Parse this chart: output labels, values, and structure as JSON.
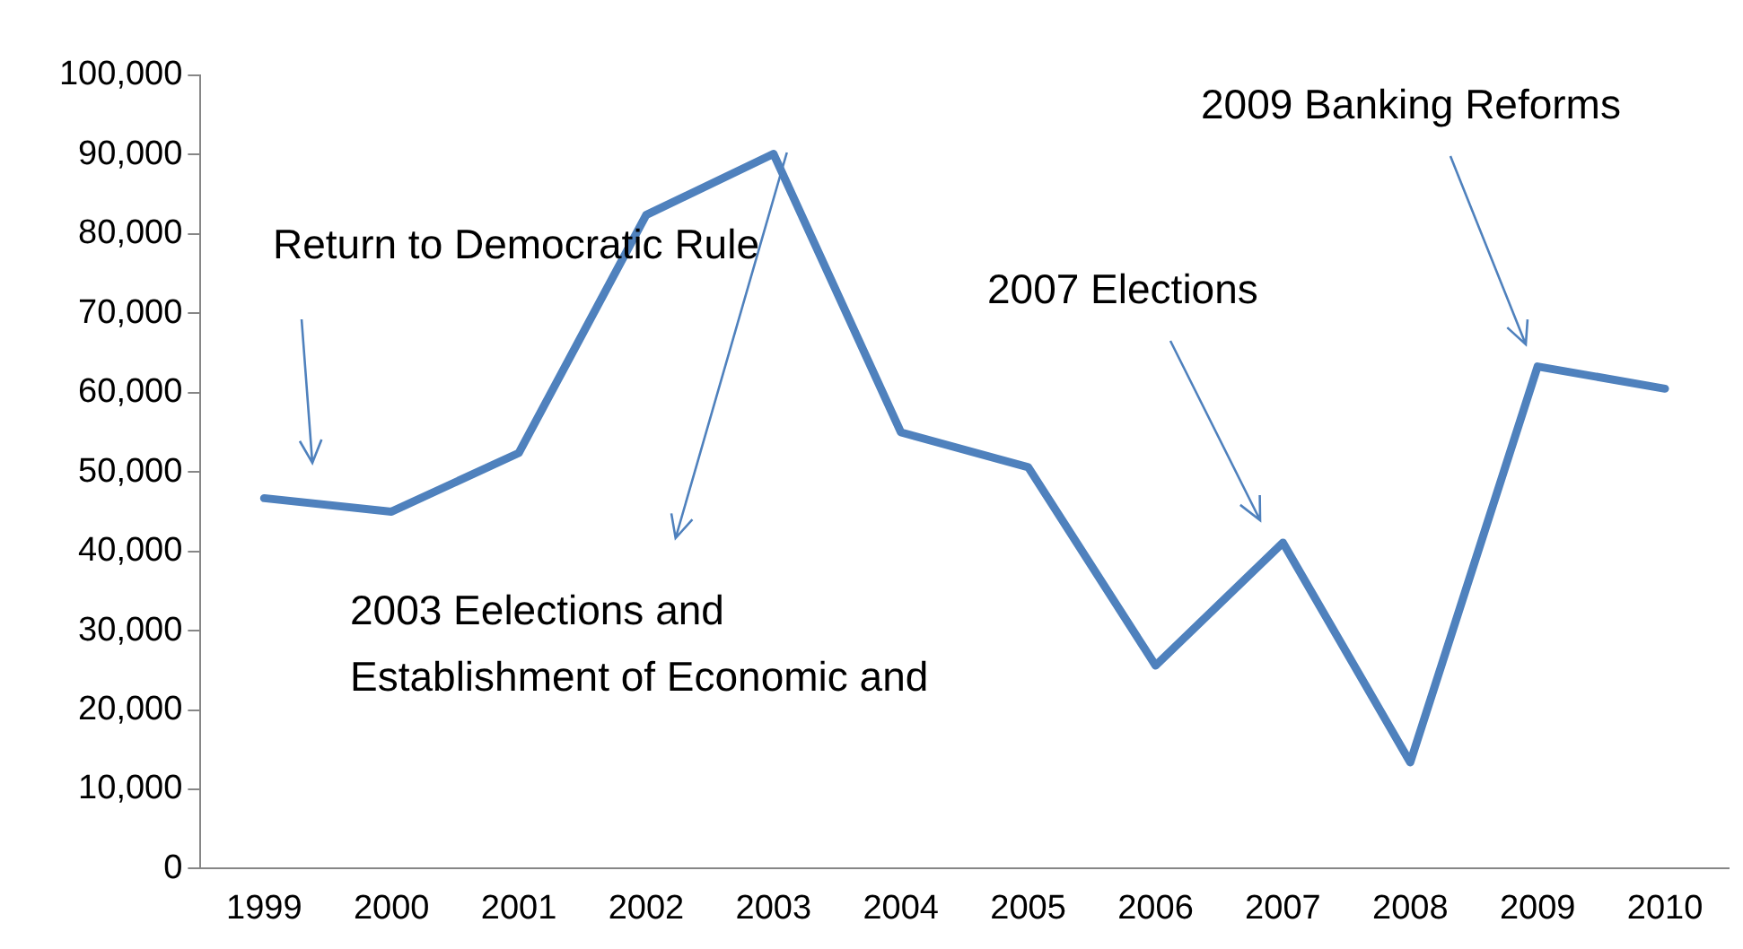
{
  "chart_data": {
    "type": "line",
    "categories": [
      "1999",
      "2000",
      "2001",
      "2002",
      "2003",
      "2004",
      "2005",
      "2006",
      "2007",
      "2008",
      "2009",
      "2010"
    ],
    "series": [
      {
        "color": "#4f81bd",
        "values": [
          46700,
          45000,
          52400,
          82400,
          90100,
          55000,
          50600,
          25600,
          41100,
          13400,
          63300,
          60500
        ]
      }
    ],
    "ylim": [
      0,
      100000
    ],
    "yticks": [
      0,
      {
        "value": 10000,
        "label": "10,000"
      },
      {
        "value": 20000,
        "label": "20,000"
      },
      {
        "value": 30000,
        "label": "30,000"
      },
      {
        "value": 40000,
        "label": "40,000"
      },
      {
        "value": 50000,
        "label": "50,000"
      },
      {
        "value": 60000,
        "label": "60,000"
      },
      {
        "value": 70000,
        "label": "70,000"
      },
      {
        "value": 80000,
        "label": "80,000"
      },
      {
        "value": 90000,
        "label": "90,000"
      },
      {
        "value": 100000,
        "label": "100,000"
      }
    ],
    "grid": false,
    "legend": false,
    "marker": "none",
    "line_style": "solid",
    "annotations": [
      "Return to Democratic Rule",
      "2003 Eelections and Establishment of Economic and",
      "2007 Elections",
      "2009 Banking Reforms"
    ]
  }
}
